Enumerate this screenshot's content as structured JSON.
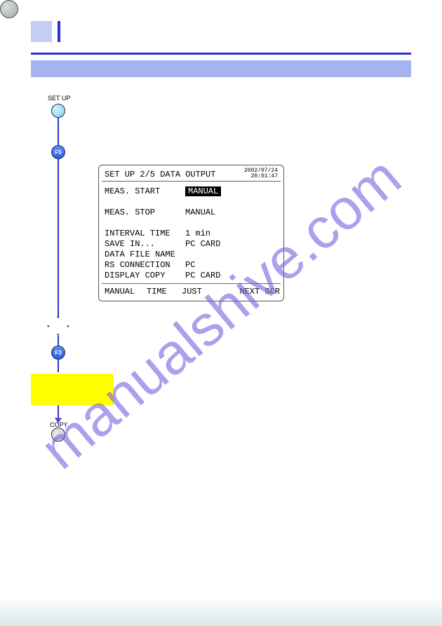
{
  "watermark": "manualshive.com",
  "flow": {
    "setup_label": "SET UP",
    "f5_label": "F5",
    "f3_label": "F3",
    "copy_label": "COPY"
  },
  "colors": {
    "accent_blue": "#2a2fd0",
    "banner": "#a7b3ee",
    "header_box": "#c3cdf5",
    "yellow": "#ffff00",
    "watermark": "#7a61e0"
  },
  "screen": {
    "title": "SET UP  2/5 DATA OUTPUT",
    "timestamp_date": "2002/07/24",
    "timestamp_time": "20:01:47",
    "rows": {
      "meas_start_label": "MEAS. START",
      "meas_start_value": "MANUAL",
      "meas_stop_label": "MEAS. STOP",
      "meas_stop_value": "MANUAL",
      "interval_label": "INTERVAL TIME",
      "interval_value": "  1 min",
      "save_label": "SAVE IN...",
      "save_value": "PC CARD",
      "file_label": "DATA FILE NAME",
      "file_value": "",
      "rs_label": "RS CONNECTION",
      "rs_value": "PC",
      "disp_label": "DISPLAY COPY",
      "disp_value": "PC CARD"
    },
    "softkeys": {
      "k1": "MANUAL",
      "k2": "TIME",
      "k3": "JUST",
      "k5": "NEXT SCR"
    }
  }
}
